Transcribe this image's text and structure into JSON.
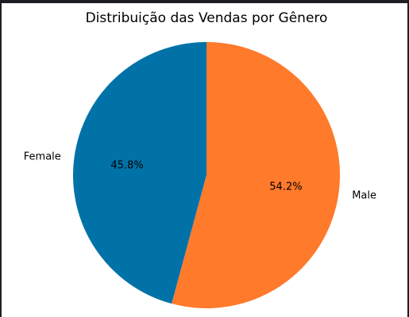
{
  "chart_data": {
    "type": "pie",
    "title": "Distribuição das Vendas por Gênero",
    "slices": [
      {
        "label": "Female",
        "value": 45.8,
        "pct_label": "45.8%",
        "color": "#0072a8"
      },
      {
        "label": "Male",
        "value": 54.2,
        "pct_label": "54.2%",
        "color": "#ff7a2b"
      }
    ],
    "start_angle": 90,
    "direction": "counterclockwise"
  }
}
